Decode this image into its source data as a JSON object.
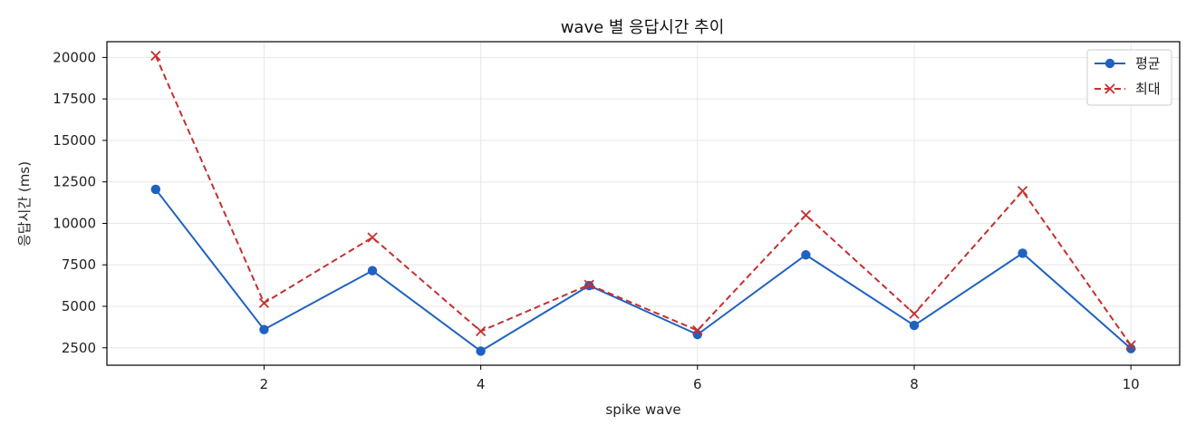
{
  "chart_data": {
    "type": "line",
    "title": "wave 별 응답시간 추이",
    "xlabel": "spike wave",
    "ylabel": "응답시간 (ms)",
    "x": [
      1,
      2,
      3,
      4,
      5,
      6,
      7,
      8,
      9,
      10
    ],
    "xlim": [
      0.55,
      10.45
    ],
    "ylim": [
      1450,
      20950
    ],
    "xticks": [
      2,
      4,
      6,
      8,
      10
    ],
    "yticks": [
      2500,
      5000,
      7500,
      10000,
      12500,
      15000,
      17500,
      20000
    ],
    "grid": true,
    "legend_position": "top-right",
    "series": [
      {
        "name": "평균",
        "color": "#1f62c0",
        "line_style": "solid",
        "marker": "circle",
        "values": [
          12050,
          3600,
          7150,
          2300,
          6250,
          3300,
          8100,
          3850,
          8200,
          2450
        ]
      },
      {
        "name": "최대",
        "color": "#c62f2f",
        "line_style": "dashed",
        "marker": "x",
        "values": [
          20100,
          5200,
          9150,
          3500,
          6300,
          3550,
          10500,
          4550,
          11950,
          2650
        ]
      }
    ]
  }
}
